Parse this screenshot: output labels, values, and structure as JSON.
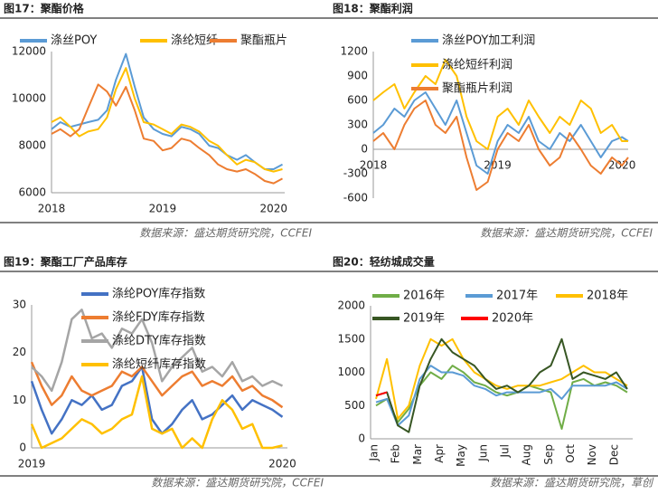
{
  "chart_data": [
    {
      "type": "line",
      "title": "图17：聚酯价格",
      "source": "数据来源：盛达期货研究院，CCFEI",
      "x": [
        2018.0,
        2018.08,
        2018.17,
        2018.25,
        2018.33,
        2018.42,
        2018.5,
        2018.58,
        2018.67,
        2018.75,
        2018.83,
        2018.92,
        2019.0,
        2019.08,
        2019.17,
        2019.25,
        2019.33,
        2019.42,
        2019.5,
        2019.58,
        2019.67,
        2019.75,
        2019.83,
        2019.92,
        2020.0,
        2020.08
      ],
      "xlim": [
        2018,
        2020.1
      ],
      "xticks": [
        2018,
        2019,
        2020
      ],
      "ylim": [
        6000,
        12000
      ],
      "yticks": [
        6000,
        8000,
        10000,
        12000
      ],
      "series": [
        {
          "name": "涤丝POY",
          "color": "#5b9bd5",
          "values": [
            8700,
            9000,
            8800,
            8900,
            9000,
            9100,
            9500,
            10800,
            11900,
            10500,
            9200,
            8700,
            8500,
            8400,
            8800,
            8700,
            8500,
            8000,
            7900,
            7600,
            7400,
            7600,
            7300,
            7000,
            7000,
            7200
          ]
        },
        {
          "name": "涤纶短纤",
          "color": "#ffc000",
          "values": [
            9000,
            9200,
            8800,
            8400,
            8600,
            8700,
            9200,
            10400,
            11300,
            10000,
            9000,
            8900,
            8700,
            8500,
            8900,
            8800,
            8600,
            8200,
            8000,
            7600,
            7200,
            7400,
            7300,
            7000,
            6900,
            7000
          ]
        },
        {
          "name": "聚酯瓶片",
          "color": "#ed7d31",
          "values": [
            8500,
            8700,
            8400,
            8700,
            9600,
            10600,
            10300,
            9700,
            10500,
            9500,
            8300,
            8200,
            7800,
            7900,
            8300,
            8200,
            7900,
            7600,
            7200,
            7000,
            6900,
            7000,
            6800,
            6500,
            6400,
            6600
          ]
        }
      ]
    },
    {
      "type": "line",
      "title": "图18：聚酯利润",
      "source": "数据来源：盛达期货研究院，CCFEI",
      "x": [
        2018.0,
        2018.08,
        2018.17,
        2018.25,
        2018.33,
        2018.42,
        2018.5,
        2018.58,
        2018.67,
        2018.75,
        2018.83,
        2018.92,
        2019.0,
        2019.08,
        2019.17,
        2019.25,
        2019.33,
        2019.42,
        2019.5,
        2019.58,
        2019.67,
        2019.75,
        2019.83,
        2019.92,
        2020.0,
        2020.05
      ],
      "xlim": [
        2018,
        2020.05
      ],
      "xticks": [
        2018,
        2019,
        2020
      ],
      "ylim": [
        -600,
        1200
      ],
      "yticks": [
        -600,
        -300,
        0,
        300,
        600,
        900,
        1200
      ],
      "series": [
        {
          "name": "涤丝POY加工利润",
          "color": "#5b9bd5",
          "values": [
            200,
            300,
            500,
            400,
            600,
            700,
            500,
            300,
            600,
            200,
            -200,
            -300,
            100,
            300,
            200,
            400,
            100,
            0,
            200,
            100,
            300,
            100,
            -100,
            100,
            150,
            100
          ]
        },
        {
          "name": "涤纶短纤利润",
          "color": "#ffc000",
          "values": [
            600,
            700,
            800,
            500,
            700,
            900,
            800,
            1100,
            900,
            400,
            100,
            0,
            400,
            500,
            300,
            600,
            400,
            200,
            400,
            300,
            600,
            500,
            200,
            300,
            100,
            100
          ]
        },
        {
          "name": "聚酯瓶片利润",
          "color": "#ed7d31",
          "values": [
            100,
            200,
            0,
            300,
            500,
            600,
            300,
            200,
            400,
            -100,
            -500,
            -400,
            0,
            200,
            100,
            300,
            0,
            -200,
            -100,
            200,
            0,
            -200,
            -300,
            -100,
            -200,
            -100
          ]
        }
      ]
    },
    {
      "type": "line",
      "title": "图19：聚酯工厂产品库存",
      "source": "数据来源：盛达期货研究院，CCFEI",
      "x": [
        2019.0,
        2019.04,
        2019.08,
        2019.12,
        2019.16,
        2019.2,
        2019.24,
        2019.28,
        2019.32,
        2019.36,
        2019.4,
        2019.44,
        2019.48,
        2019.52,
        2019.56,
        2019.6,
        2019.64,
        2019.68,
        2019.72,
        2019.76,
        2019.8,
        2019.84,
        2019.88,
        2019.92,
        2019.96,
        2020.0
      ],
      "xlim": [
        2019,
        2020.02
      ],
      "xticks": [
        2019,
        2020
      ],
      "ylim": [
        0,
        30
      ],
      "yticks": [
        0,
        10,
        20,
        30
      ],
      "series": [
        {
          "name": "涤纶POY库存指数",
          "color": "#4472c4",
          "values": [
            14,
            8,
            3,
            6,
            10,
            9,
            11,
            8,
            9,
            13,
            14,
            17,
            6,
            3,
            5,
            8,
            10,
            6,
            7,
            9,
            11,
            8,
            10,
            9,
            8,
            6.5
          ]
        },
        {
          "name": "涤纶FDY库存指数",
          "color": "#ed7d31",
          "values": [
            18,
            13,
            9,
            11,
            15,
            12,
            11,
            12,
            13,
            16,
            15,
            17,
            14,
            11,
            13,
            15,
            16,
            13,
            14,
            13,
            15,
            12,
            13,
            11,
            10,
            8.5
          ]
        },
        {
          "name": "涤纶DTY库存指数",
          "color": "#a5a5a5",
          "values": [
            17,
            15,
            12,
            18,
            27,
            29,
            23,
            24,
            21,
            25,
            24,
            27,
            22,
            14,
            17,
            19,
            21,
            16,
            17,
            15,
            18,
            14,
            15,
            13,
            14,
            13
          ]
        },
        {
          "name": "涤纶短纤库存指数",
          "color": "#ffc000",
          "values": [
            5,
            0,
            1,
            2,
            4,
            6,
            5,
            3,
            4,
            6,
            7,
            15,
            4,
            3,
            4,
            0,
            2,
            0,
            6,
            10,
            8,
            4,
            5,
            0,
            0,
            0.5
          ]
        }
      ]
    },
    {
      "type": "line",
      "title": "图20：轻纺城成交量",
      "source": "数据来源：盛达期货研究院，草创",
      "categories": [
        "Jan",
        null,
        "Feb",
        null,
        "Mar",
        null,
        "Apr",
        null,
        "May",
        null,
        "Jun",
        null,
        "Jul",
        null,
        "Aug",
        null,
        "Sep",
        null,
        "Oct",
        null,
        "Nov",
        null,
        "Dec",
        null
      ],
      "ylim": [
        0,
        2000
      ],
      "yticks": [
        0,
        500,
        1000,
        1500,
        2000
      ],
      "series": [
        {
          "name": "2016年",
          "color": "#70ad47",
          "values": [
            500,
            600,
            250,
            450,
            800,
            1000,
            900,
            1100,
            1000,
            850,
            800,
            700,
            650,
            700,
            800,
            750,
            700,
            150,
            850,
            900,
            800,
            850,
            800,
            700
          ]
        },
        {
          "name": "2017年",
          "color": "#5b9bd5",
          "values": [
            550,
            600,
            200,
            350,
            900,
            1100,
            1000,
            1000,
            950,
            800,
            750,
            650,
            700,
            700,
            700,
            700,
            750,
            600,
            800,
            800,
            800,
            800,
            850,
            750
          ]
        },
        {
          "name": "2018年",
          "color": "#ffc000",
          "values": [
            600,
            1200,
            300,
            500,
            1100,
            1500,
            1400,
            1500,
            1200,
            1000,
            900,
            800,
            750,
            800,
            800,
            800,
            850,
            900,
            1000,
            1100,
            1000,
            1000,
            900,
            800
          ]
        },
        {
          "name": "2019年",
          "color": "#375623",
          "values": [
            650,
            700,
            200,
            100,
            800,
            1200,
            1500,
            1300,
            1200,
            1100,
            900,
            750,
            800,
            700,
            800,
            1000,
            1100,
            1500,
            900,
            1000,
            950,
            900,
            1000,
            750
          ]
        },
        {
          "name": "2020年",
          "color": "#ff0000",
          "values": [
            650,
            700,
            null,
            null,
            null,
            null,
            null,
            null,
            null,
            null,
            null,
            null,
            null,
            null,
            null,
            null,
            null,
            null,
            null,
            null,
            null,
            null,
            null,
            null
          ]
        }
      ]
    }
  ]
}
